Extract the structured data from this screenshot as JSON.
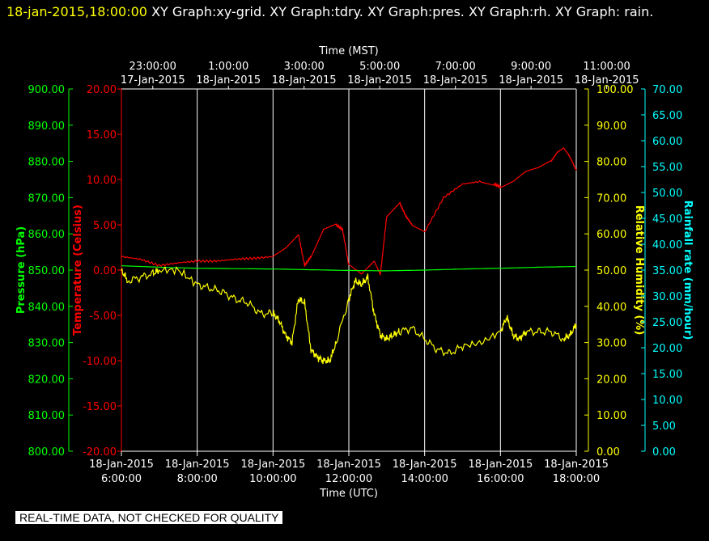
{
  "header": {
    "timestamp": "18-jan-2015,18:00:00",
    "graphs": "XY Graph:xy-grid.  XY Graph:tdry.  XY Graph:pres.  XY Graph:rh.  XY Graph: rain."
  },
  "footer": {
    "quality_note": "REAL-TIME DATA, NOT CHECKED FOR QUALITY"
  },
  "colors": {
    "background": "#000000",
    "grid": "#ffffff",
    "temperature": "#ff0000",
    "pressure": "#00ff00",
    "humidity": "#ffff00",
    "rainfall": "#00ffff"
  },
  "chart_data": {
    "type": "line",
    "grid": true,
    "top_axis": {
      "title": "Time (MST)",
      "ticks": [
        {
          "time": "23:00:00",
          "date": "17-Jan-2015"
        },
        {
          "time": "1:00:00",
          "date": "18-Jan-2015"
        },
        {
          "time": "3:00:00",
          "date": "18-Jan-2015"
        },
        {
          "time": "5:00:00",
          "date": "18-Jan-2015"
        },
        {
          "time": "7:00:00",
          "date": "18-Jan-2015"
        },
        {
          "time": "9:00:00",
          "date": "18-Jan-2015"
        },
        {
          "time": "11:00:00",
          "date": "18-Jan-2015"
        }
      ]
    },
    "bottom_axis": {
      "title": "Time (UTC)",
      "range": [
        "2015-01-18T06:00:00",
        "2015-01-18T18:00:00"
      ],
      "ticks": [
        {
          "date": "18-Jan-2015",
          "time": "6:00:00"
        },
        {
          "date": "18-Jan-2015",
          "time": "8:00:00"
        },
        {
          "date": "18-Jan-2015",
          "time": "10:00:00"
        },
        {
          "date": "18-Jan-2015",
          "time": "12:00:00"
        },
        {
          "date": "18-Jan-2015",
          "time": "14:00:00"
        },
        {
          "date": "18-Jan-2015",
          "time": "16:00:00"
        },
        {
          "date": "18-Jan-2015",
          "time": "18:00:00"
        }
      ]
    },
    "axes": {
      "pressure": {
        "title": "Pressure (hPa)",
        "range": [
          800,
          900
        ],
        "ticks": [
          "800.00",
          "810.00",
          "820.00",
          "830.00",
          "840.00",
          "850.00",
          "860.00",
          "870.00",
          "880.00",
          "890.00",
          "900.00"
        ]
      },
      "temperature": {
        "title": "Temperature (Celsius)",
        "range": [
          -20,
          20
        ],
        "ticks": [
          "-20.00",
          "-15.00",
          "-10.00",
          "-5.00",
          "0.00",
          "5.00",
          "10.00",
          "15.00",
          "20.00"
        ]
      },
      "humidity": {
        "title": "Relative Humidity (%)",
        "range": [
          0,
          100
        ],
        "ticks": [
          "0.00",
          "10.00",
          "20.00",
          "30.00",
          "40.00",
          "50.00",
          "60.00",
          "70.00",
          "80.00",
          "90.00",
          "100.00"
        ]
      },
      "rainfall": {
        "title": "Rainfall rate (mm/hour)",
        "range": [
          0,
          70
        ],
        "ticks": [
          "0.00",
          "5.00",
          "10.00",
          "15.00",
          "20.00",
          "25.00",
          "30.00",
          "35.00",
          "40.00",
          "45.00",
          "50.00",
          "55.00",
          "60.00",
          "65.00",
          "70.00"
        ]
      }
    },
    "series": [
      {
        "axis": "temperature",
        "x": [
          "06:00",
          "06:30",
          "07:00",
          "07:30",
          "08:00",
          "08:30",
          "09:00",
          "09:30",
          "10:00",
          "10:20",
          "10:40",
          "10:50",
          "11:00",
          "11:20",
          "11:40",
          "11:50",
          "12:00",
          "12:20",
          "12:40",
          "12:50",
          "13:00",
          "13:20",
          "13:30",
          "13:40",
          "14:00",
          "14:30",
          "15:00",
          "15:30",
          "15:50",
          "16:00",
          "16:20",
          "16:40",
          "17:00",
          "17:20",
          "17:30",
          "17:40",
          "17:50",
          "18:00"
        ],
        "y": [
          1.5,
          1.2,
          0.5,
          0.8,
          1.0,
          1.0,
          1.2,
          1.3,
          1.5,
          2.5,
          4.0,
          0.5,
          1.5,
          4.5,
          5.0,
          4.5,
          0.5,
          -0.5,
          1.0,
          -0.5,
          6.0,
          7.5,
          6.0,
          5.0,
          4.2,
          8.0,
          9.5,
          9.8,
          9.5,
          9.2,
          9.8,
          10.8,
          11.2,
          12.0,
          13.0,
          13.5,
          12.5,
          11.0
        ]
      },
      {
        "axis": "pressure",
        "x": [
          "06:00",
          "07:00",
          "08:00",
          "09:00",
          "10:00",
          "11:00",
          "12:00",
          "13:00",
          "14:00",
          "15:00",
          "16:00",
          "17:00",
          "18:00"
        ],
        "y": [
          851.2,
          850.8,
          850.5,
          850.4,
          850.3,
          850.1,
          849.9,
          849.8,
          850.0,
          850.3,
          850.5,
          850.8,
          851.0
        ]
      },
      {
        "axis": "humidity",
        "x": [
          "06:00",
          "06:10",
          "06:30",
          "06:50",
          "07:00",
          "07:30",
          "08:00",
          "08:20",
          "08:40",
          "09:00",
          "09:20",
          "09:40",
          "10:00",
          "10:10",
          "10:20",
          "10:30",
          "10:40",
          "10:50",
          "11:00",
          "11:10",
          "11:20",
          "11:30",
          "11:40",
          "12:00",
          "12:10",
          "12:20",
          "12:30",
          "12:40",
          "12:50",
          "13:00",
          "13:10",
          "13:20",
          "13:40",
          "14:00",
          "14:20",
          "14:40",
          "15:00",
          "15:30",
          "16:00",
          "16:10",
          "16:20",
          "16:30",
          "16:40",
          "17:00",
          "17:20",
          "17:40",
          "17:50",
          "18:00"
        ],
        "y": [
          50,
          47,
          48,
          49,
          50,
          50,
          46,
          45,
          44,
          42,
          41,
          38,
          38,
          36,
          32,
          30,
          42,
          41,
          28,
          26,
          25,
          25,
          30,
          42,
          47,
          46,
          48,
          38,
          32,
          31,
          32,
          33,
          34,
          31,
          28,
          27,
          29,
          30,
          33,
          37,
          32,
          31,
          33,
          33,
          33,
          31,
          32,
          35
        ]
      },
      {
        "axis": "rainfall",
        "x": [],
        "y": []
      }
    ]
  }
}
